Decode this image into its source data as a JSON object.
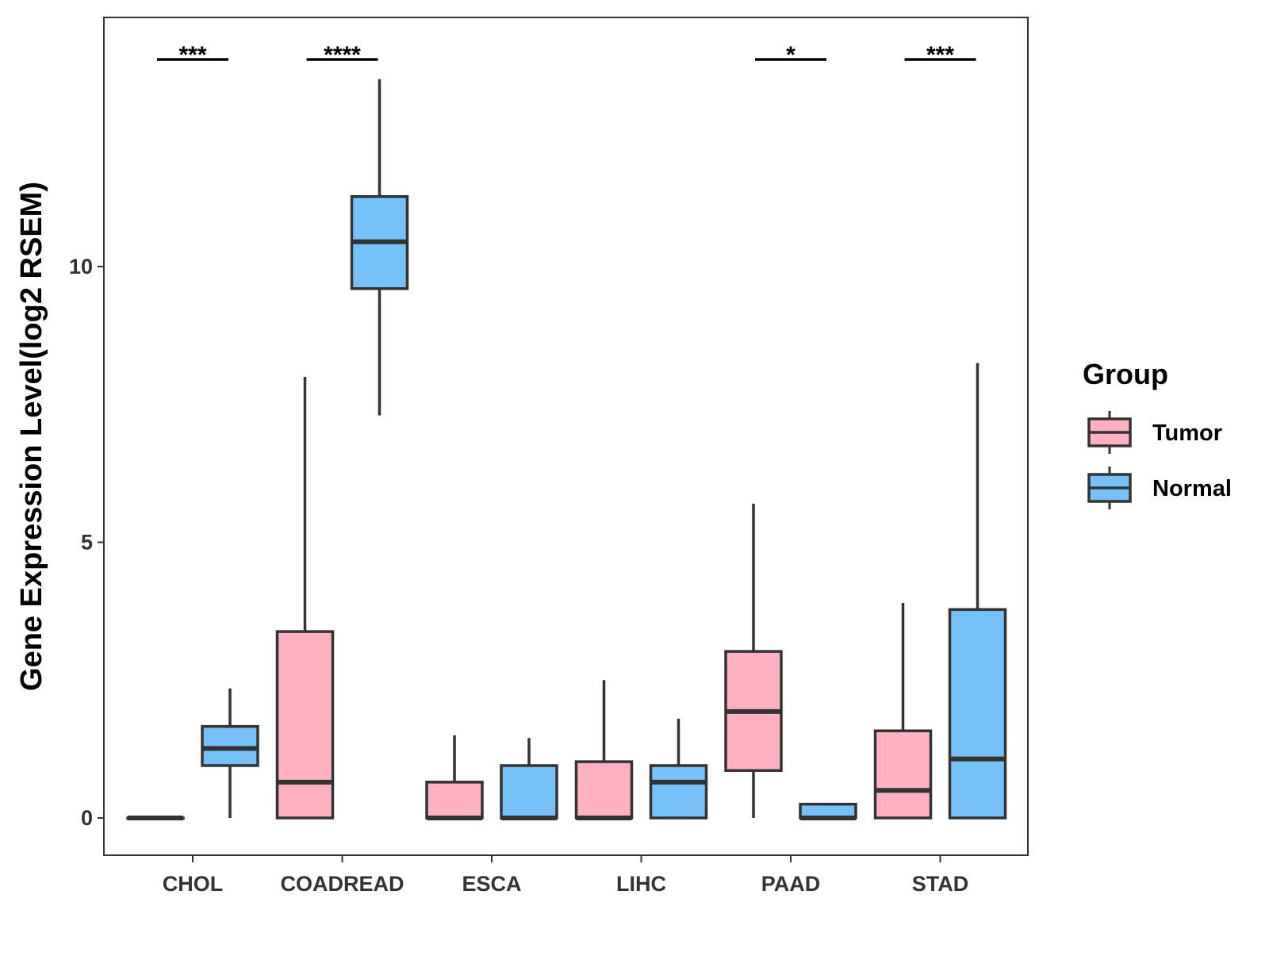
{
  "chart_data": {
    "type": "boxplot",
    "title": "",
    "xlabel": "",
    "ylabel": "Gene Expression Level(log2 RSEM)",
    "ylim": [
      -0.68,
      14.5
    ],
    "yticks": [
      0,
      5,
      10
    ],
    "ytick_labels": [
      "0",
      "5",
      "10"
    ],
    "categories": [
      "CHOL",
      "COADREAD",
      "ESCA",
      "LIHC",
      "PAAD",
      "STAD"
    ],
    "legend": {
      "title": "Group",
      "position": "right",
      "entries": [
        {
          "name": "Tumor",
          "color": "#FFB0C1"
        },
        {
          "name": "Normal",
          "color": "#76C1F8"
        }
      ]
    },
    "series": [
      {
        "name": "Tumor",
        "color": "#FFB0C1",
        "boxes": [
          {
            "category": "CHOL",
            "min": 0,
            "q1": 0,
            "median": 0,
            "q3": 0,
            "max": 0
          },
          {
            "category": "COADREAD",
            "min": 0,
            "q1": 0,
            "median": 0.65,
            "q3": 3.38,
            "max": 8.0
          },
          {
            "category": "ESCA",
            "min": 0,
            "q1": 0,
            "median": 0,
            "q3": 0.65,
            "max": 1.5
          },
          {
            "category": "LIHC",
            "min": 0,
            "q1": 0,
            "median": 0,
            "q3": 1.02,
            "max": 2.5
          },
          {
            "category": "PAAD",
            "min": 0,
            "q1": 0.86,
            "median": 1.93,
            "q3": 3.02,
            "max": 5.7
          },
          {
            "category": "STAD",
            "min": 0,
            "q1": 0,
            "median": 0.5,
            "q3": 1.58,
            "max": 3.9
          }
        ]
      },
      {
        "name": "Normal",
        "color": "#76C1F8",
        "boxes": [
          {
            "category": "CHOL",
            "min": 0,
            "q1": 0.95,
            "median": 1.26,
            "q3": 1.66,
            "max": 2.35
          },
          {
            "category": "COADREAD",
            "min": 7.3,
            "q1": 9.6,
            "median": 10.45,
            "q3": 11.27,
            "max": 13.4
          },
          {
            "category": "ESCA",
            "min": 0,
            "q1": 0,
            "median": 0,
            "q3": 0.95,
            "max": 1.45
          },
          {
            "category": "LIHC",
            "min": 0,
            "q1": 0,
            "median": 0.65,
            "q3": 0.95,
            "max": 1.8
          },
          {
            "category": "PAAD",
            "min": 0,
            "q1": 0,
            "median": 0,
            "q3": 0.25,
            "max": 0.25
          },
          {
            "category": "STAD",
            "min": 0,
            "q1": 0,
            "median": 1.07,
            "q3": 3.78,
            "max": 8.25
          }
        ]
      }
    ],
    "significance": [
      {
        "category": "CHOL",
        "label": "***"
      },
      {
        "category": "COADREAD",
        "label": "****"
      },
      {
        "category": "PAAD",
        "label": "*"
      },
      {
        "category": "STAD",
        "label": "***"
      }
    ]
  }
}
